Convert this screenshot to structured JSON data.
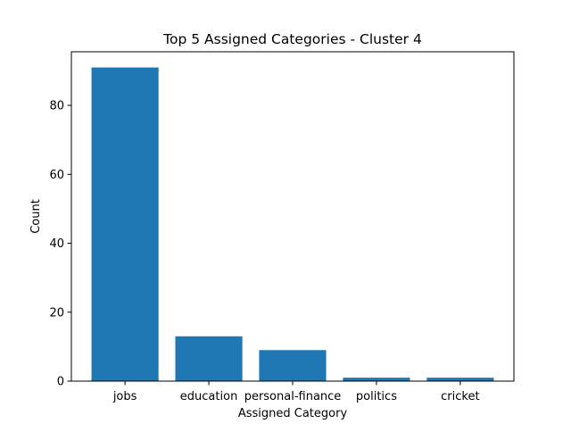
{
  "chart_data": {
    "type": "bar",
    "title": "Top 5 Assigned Categories - Cluster 4",
    "xlabel": "Assigned Category",
    "ylabel": "Count",
    "categories": [
      "jobs",
      "education",
      "personal-finance",
      "politics",
      "cricket"
    ],
    "values": [
      91,
      13,
      9,
      1,
      1
    ],
    "ylim": [
      0,
      95.55
    ],
    "yticks": [
      0,
      20,
      40,
      60,
      80
    ],
    "grid": false,
    "legend": "none",
    "bar_color": "#1f77b4"
  }
}
